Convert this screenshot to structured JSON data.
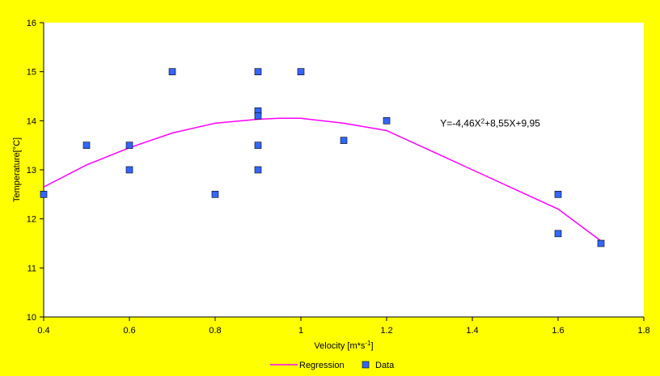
{
  "chart_data": {
    "type": "scatter",
    "title": "",
    "xlabel": "Velocity [m*s",
    "xlabel_sup": "-1",
    "xlabel_tail": "]",
    "ylabel": "Temperature[°C]",
    "xlim": [
      0.4,
      1.8
    ],
    "ylim": [
      10,
      16
    ],
    "x_ticks": [
      "0.4",
      "0.6",
      "0.8",
      "1",
      "1.2",
      "1.4",
      "1.6",
      "1.8"
    ],
    "y_ticks": [
      "10",
      "11",
      "12",
      "13",
      "14",
      "15",
      "16"
    ],
    "grid": false,
    "legend_position": "bottom",
    "series": [
      {
        "name": "Regression",
        "kind": "line",
        "color": "#ff00ff",
        "x": [
          0.4,
          0.5,
          0.6,
          0.7,
          0.8,
          0.9,
          0.95,
          1.0,
          1.1,
          1.2,
          1.3,
          1.4,
          1.5,
          1.6,
          1.7
        ],
        "y": [
          12.65,
          13.1,
          13.45,
          13.75,
          13.95,
          14.03,
          14.05,
          14.05,
          13.95,
          13.8,
          13.4,
          13.0,
          12.6,
          12.2,
          11.55
        ]
      },
      {
        "name": "Data",
        "kind": "scatter",
        "color": "#3366ff",
        "x": [
          0.4,
          0.5,
          0.6,
          0.6,
          0.7,
          0.8,
          0.9,
          0.9,
          0.9,
          0.9,
          0.9,
          1.0,
          1.1,
          1.2,
          1.6,
          1.6,
          1.7
        ],
        "y": [
          12.5,
          13.5,
          13.5,
          13.0,
          15.0,
          12.5,
          15.0,
          14.2,
          14.1,
          13.5,
          13.0,
          15.0,
          13.6,
          14.0,
          12.5,
          11.7,
          11.5
        ]
      }
    ],
    "annotation": {
      "text_prefix": "Y=-4,46X",
      "text_sup": "2",
      "text_suffix": "+8,55X+9,95"
    }
  }
}
